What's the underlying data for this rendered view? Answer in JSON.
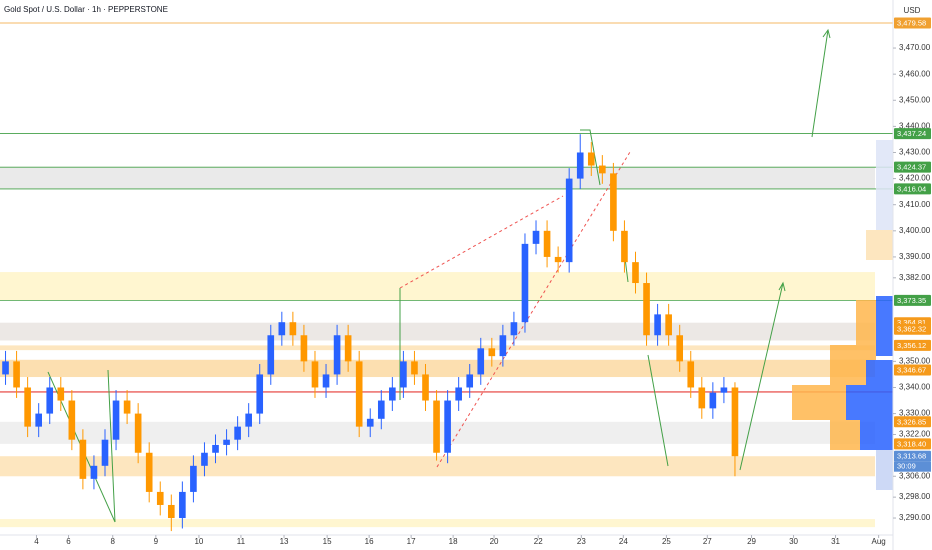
{
  "chart_data": {
    "type": "candlestick",
    "title": "Gold Spot / U.S. Dollar · 1h · PEPPERSTONE",
    "currency": "USD",
    "countdown": "30:09",
    "up_color": "#2962ff",
    "down_color": "#ff9800",
    "grid": false,
    "xlim": [
      -0.5,
      80.3
    ],
    "ylim": [
      3283.5,
      3488.4
    ],
    "xticks": [
      {
        "value": 2.8,
        "label": "4"
      },
      {
        "value": 5.7,
        "label": "6"
      },
      {
        "value": 9.7,
        "label": "8"
      },
      {
        "value": 13.6,
        "label": "9"
      },
      {
        "value": 17.5,
        "label": "10"
      },
      {
        "value": 21.3,
        "label": "11"
      },
      {
        "value": 25.2,
        "label": "13"
      },
      {
        "value": 29.1,
        "label": "15"
      },
      {
        "value": 32.9,
        "label": "16"
      },
      {
        "value": 36.7,
        "label": "17"
      },
      {
        "value": 40.5,
        "label": "18"
      },
      {
        "value": 44.2,
        "label": "20"
      },
      {
        "value": 48.2,
        "label": "22"
      },
      {
        "value": 52.1,
        "label": "23"
      },
      {
        "value": 55.9,
        "label": "24"
      },
      {
        "value": 59.8,
        "label": "25"
      },
      {
        "value": 63.5,
        "label": "27"
      },
      {
        "value": 67.5,
        "label": "29"
      },
      {
        "value": 71.3,
        "label": "30"
      },
      {
        "value": 75.1,
        "label": "31"
      },
      {
        "value": 79.0,
        "label": "Aug"
      }
    ],
    "yticks": [
      {
        "value": 3470,
        "label": "3,470.00"
      },
      {
        "value": 3460,
        "label": "3,460.00"
      },
      {
        "value": 3450,
        "label": "3,450.00"
      },
      {
        "value": 3440,
        "label": "3,440.00"
      },
      {
        "value": 3430,
        "label": "3,430.00"
      },
      {
        "value": 3420,
        "label": "3,420.00"
      },
      {
        "value": 3410,
        "label": "3,410.00"
      },
      {
        "value": 3400,
        "label": "3,400.00"
      },
      {
        "value": 3390,
        "label": "3,390.00"
      },
      {
        "value": 3382,
        "label": "3,382.00"
      },
      {
        "value": 3350,
        "label": "3,350.00"
      },
      {
        "value": 3340,
        "label": "3,340.00"
      },
      {
        "value": 3330,
        "label": "3,330.00"
      },
      {
        "value": 3322,
        "label": "3,322.00"
      },
      {
        "value": 3306,
        "label": "3,306.00"
      },
      {
        "value": 3298,
        "label": "3,298.00"
      },
      {
        "value": 3290,
        "label": "3,290.00"
      }
    ],
    "open": [
      3345,
      3350,
      3340,
      3325,
      3330,
      3340,
      3335,
      3320,
      3305,
      3310,
      3320,
      3335,
      3330,
      3315,
      3300,
      3295,
      3290,
      3300,
      3310,
      3315,
      3318,
      3320,
      3325,
      3330,
      3345,
      3360,
      3365,
      3360,
      3350,
      3340,
      3345,
      3360,
      3350,
      3325,
      3328,
      3335,
      3340,
      3350,
      3345,
      3335,
      3315,
      3335,
      3340,
      3345,
      3355,
      3352,
      3360,
      3365,
      3395,
      3400,
      3390,
      3388,
      3420,
      3430,
      3425,
      3422,
      3400,
      3388,
      3380,
      3360,
      3368,
      3360,
      3350,
      3340,
      3332,
      3338,
      3340
    ],
    "high": [
      3354,
      3354,
      3344,
      3334,
      3344,
      3344,
      3339,
      3324,
      3314,
      3324,
      3339,
      3339,
      3334,
      3319,
      3304,
      3299,
      3304,
      3314,
      3319,
      3322,
      3324,
      3329,
      3334,
      3349,
      3364,
      3369,
      3369,
      3364,
      3354,
      3349,
      3364,
      3364,
      3354,
      3332,
      3339,
      3344,
      3354,
      3354,
      3349,
      3339,
      3339,
      3344,
      3349,
      3359,
      3359,
      3364,
      3369,
      3399,
      3404,
      3404,
      3394,
      3424,
      3437,
      3434,
      3429,
      3426,
      3404,
      3392,
      3384,
      3372,
      3372,
      3364,
      3354,
      3344,
      3342,
      3344,
      3342
    ],
    "low": [
      3341,
      3336,
      3321,
      3321,
      3326,
      3331,
      3316,
      3301,
      3301,
      3306,
      3316,
      3326,
      3311,
      3296,
      3291,
      3285,
      3286,
      3296,
      3306,
      3311,
      3314,
      3316,
      3321,
      3326,
      3341,
      3356,
      3356,
      3346,
      3336,
      3336,
      3341,
      3346,
      3321,
      3321,
      3324,
      3331,
      3336,
      3341,
      3331,
      3312,
      3311,
      3331,
      3336,
      3341,
      3348,
      3348,
      3356,
      3361,
      3391,
      3386,
      3384,
      3384,
      3416,
      3421,
      3418,
      3396,
      3384,
      3376,
      3356,
      3356,
      3356,
      3346,
      3336,
      3328,
      3328,
      3334,
      3306
    ],
    "close": [
      3350,
      3340,
      3325,
      3330,
      3340,
      3335,
      3320,
      3305,
      3310,
      3320,
      3335,
      3330,
      3315,
      3300,
      3295,
      3290,
      3300,
      3310,
      3315,
      3318,
      3320,
      3325,
      3330,
      3345,
      3360,
      3365,
      3360,
      3350,
      3340,
      3345,
      3360,
      3350,
      3325,
      3328,
      3335,
      3340,
      3350,
      3345,
      3335,
      3315,
      3335,
      3340,
      3345,
      3355,
      3352,
      3360,
      3365,
      3395,
      3400,
      3390,
      3388,
      3420,
      3430,
      3425,
      3422,
      3400,
      3388,
      3380,
      3360,
      3368,
      3360,
      3350,
      3340,
      3332,
      3338,
      3340,
      3313.68
    ],
    "zones": [
      {
        "from": 3416.04,
        "to": 3424.37,
        "color": "#e6e6e6"
      },
      {
        "from": 3373.35,
        "to": 3384.2,
        "color": "#fff4c8"
      },
      {
        "from": 3358.0,
        "to": 3364.81,
        "color": "#e9e4e0"
      },
      {
        "from": 3354.3,
        "to": 3356.12,
        "color": "#fde2b4"
      },
      {
        "from": 3344.0,
        "to": 3350.6,
        "color": "#fbd9a2"
      },
      {
        "from": 3318.4,
        "to": 3326.85,
        "color": "#ececec"
      },
      {
        "from": 3306.0,
        "to": 3313.68,
        "color": "#fde2b4"
      },
      {
        "from": 3286.5,
        "to": 3289.6,
        "color": "#fff4c8"
      }
    ],
    "levels": [
      {
        "value": 3338.3,
        "color": "#e53935"
      }
    ],
    "price_tags": [
      {
        "value": 3479.58,
        "label": "3,479.58",
        "color": "#f0a030",
        "line": true
      },
      {
        "value": 3437.24,
        "label": "3,437.24",
        "color": "#43a047",
        "line": true
      },
      {
        "value": 3424.37,
        "label": "3,424.37",
        "color": "#43a047",
        "line": true
      },
      {
        "value": 3416.04,
        "label": "3,416.04",
        "color": "#43a047",
        "line": true
      },
      {
        "value": 3373.35,
        "label": "3,373.35",
        "color": "#43a047",
        "line": true
      },
      {
        "value": 3364.81,
        "label": "3,364.81",
        "color": "#f59a1b",
        "line": false
      },
      {
        "value": 3362.32,
        "label": "3,362.32",
        "color": "#f59a1b",
        "line": false
      },
      {
        "value": 3356.12,
        "label": "3,356.12",
        "color": "#f59a1b",
        "line": false
      },
      {
        "value": 3346.67,
        "label": "3,346.67",
        "color": "#f59a1b",
        "line": false
      },
      {
        "value": 3326.85,
        "label": "3,326.85",
        "color": "#f59a1b",
        "line": false
      },
      {
        "value": 3318.4,
        "label": "3,318.40",
        "color": "#f59a1b",
        "line": false
      },
      {
        "value": 3313.68,
        "label": "3,313.68",
        "color": "#5c8fd6",
        "line": false
      }
    ]
  }
}
